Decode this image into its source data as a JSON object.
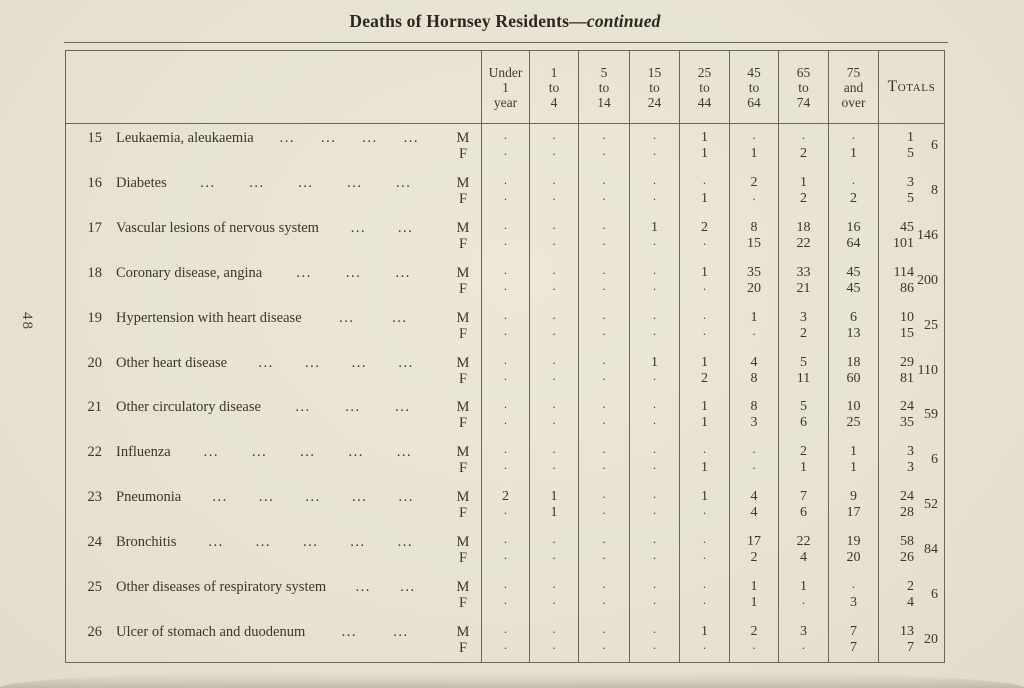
{
  "page": {
    "title_main": "Deaths of Hornsey Residents",
    "title_dash": "—",
    "title_cont": "continued",
    "page_number": "48"
  },
  "table": {
    "age_headers": [
      [
        "Under",
        "1",
        "year"
      ],
      [
        "1",
        "to",
        "4"
      ],
      [
        "5",
        "to",
        "14"
      ],
      [
        "15",
        "to",
        "24"
      ],
      [
        "25",
        "to",
        "44"
      ],
      [
        "45",
        "to",
        "64"
      ],
      [
        "65",
        "to",
        "74"
      ],
      [
        "75",
        "and",
        "over"
      ]
    ],
    "totals_header": "Totals",
    "sex_labels": {
      "m": "M",
      "f": "F"
    },
    "leader_glyph": "...",
    "rows": [
      {
        "no": "15",
        "label": "Leukaemia, aleukaemia",
        "leaders": 4,
        "m": [
          ".",
          ".",
          ".",
          ".",
          "1",
          ".",
          ".",
          "."
        ],
        "total_m": "1",
        "f": [
          ".",
          ".",
          ".",
          ".",
          "1",
          "1",
          "2",
          "1"
        ],
        "total_f": "5",
        "total": "6"
      },
      {
        "no": "16",
        "label": "Diabetes",
        "leaders": 5,
        "m": [
          ".",
          ".",
          ".",
          ".",
          ".",
          "2",
          "1",
          "."
        ],
        "total_m": "3",
        "f": [
          ".",
          ".",
          ".",
          ".",
          "1",
          ".",
          "2",
          "2"
        ],
        "total_f": "5",
        "total": "8"
      },
      {
        "no": "17",
        "label": "Vascular lesions of nervous system",
        "leaders": 2,
        "m": [
          ".",
          ".",
          ".",
          "1",
          "2",
          "8",
          "18",
          "16"
        ],
        "total_m": "45",
        "f": [
          ".",
          ".",
          ".",
          ".",
          ".",
          "15",
          "22",
          "64"
        ],
        "total_f": "101",
        "total": "146"
      },
      {
        "no": "18",
        "label": "Coronary disease, angina",
        "leaders": 3,
        "m": [
          ".",
          ".",
          ".",
          ".",
          "1",
          "35",
          "33",
          "45"
        ],
        "total_m": "114",
        "f": [
          ".",
          ".",
          ".",
          ".",
          ".",
          "20",
          "21",
          "45"
        ],
        "total_f": "86",
        "total": "200"
      },
      {
        "no": "19",
        "label": "Hypertension with heart disease",
        "leaders": 2,
        "m": [
          ".",
          ".",
          ".",
          ".",
          ".",
          "1",
          "3",
          "6"
        ],
        "total_m": "10",
        "f": [
          ".",
          ".",
          ".",
          ".",
          ".",
          ".",
          "2",
          "13"
        ],
        "total_f": "15",
        "total": "25"
      },
      {
        "no": "20",
        "label": "Other heart disease",
        "leaders": 4,
        "m": [
          ".",
          ".",
          ".",
          "1",
          "1",
          "4",
          "5",
          "18"
        ],
        "total_m": "29",
        "f": [
          ".",
          ".",
          ".",
          ".",
          "2",
          "8",
          "11",
          "60"
        ],
        "total_f": "81",
        "total": "110"
      },
      {
        "no": "21",
        "label": "Other circulatory disease",
        "leaders": 3,
        "m": [
          ".",
          ".",
          ".",
          ".",
          "1",
          "8",
          "5",
          "10"
        ],
        "total_m": "24",
        "f": [
          ".",
          ".",
          ".",
          ".",
          "1",
          "3",
          "6",
          "25"
        ],
        "total_f": "35",
        "total": "59"
      },
      {
        "no": "22",
        "label": "Influenza",
        "leaders": 5,
        "m": [
          ".",
          ".",
          ".",
          ".",
          ".",
          ".",
          "2",
          "1"
        ],
        "total_m": "3",
        "f": [
          ".",
          ".",
          ".",
          ".",
          "1",
          ".",
          "1",
          "1"
        ],
        "total_f": "3",
        "total": "6"
      },
      {
        "no": "23",
        "label": "Pneumonia",
        "leaders": 5,
        "m": [
          "2",
          "1",
          ".",
          ".",
          "1",
          "4",
          "7",
          "9"
        ],
        "total_m": "24",
        "f": [
          ".",
          "1",
          ".",
          ".",
          ".",
          "4",
          "6",
          "17"
        ],
        "total_f": "28",
        "total": "52"
      },
      {
        "no": "24",
        "label": "Bronchitis",
        "leaders": 5,
        "m": [
          ".",
          ".",
          ".",
          ".",
          ".",
          "17",
          "22",
          "19"
        ],
        "total_m": "58",
        "f": [
          ".",
          ".",
          ".",
          ".",
          ".",
          "2",
          "4",
          "20"
        ],
        "total_f": "26",
        "total": "84"
      },
      {
        "no": "25",
        "label": "Other diseases of respiratory system",
        "leaders": 2,
        "m": [
          ".",
          ".",
          ".",
          ".",
          ".",
          "1",
          "1",
          "."
        ],
        "total_m": "2",
        "f": [
          ".",
          ".",
          ".",
          ".",
          ".",
          "1",
          ".",
          "3"
        ],
        "total_f": "4",
        "total": "6"
      },
      {
        "no": "26",
        "label": "Ulcer of stomach and duodenum",
        "leaders": 2,
        "m": [
          ".",
          ".",
          ".",
          ".",
          "1",
          "2",
          "3",
          "7"
        ],
        "total_m": "13",
        "f": [
          ".",
          ".",
          ".",
          ".",
          ".",
          ".",
          ".",
          "7"
        ],
        "total_f": "7",
        "total": "20"
      }
    ]
  }
}
